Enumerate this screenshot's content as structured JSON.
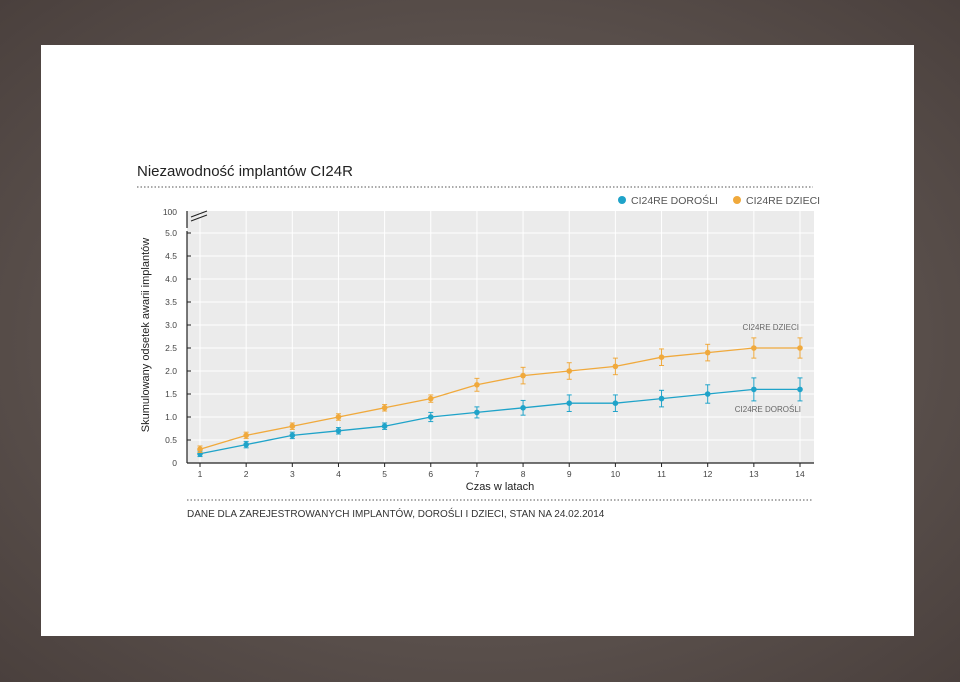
{
  "colors": {
    "adults": "#1fa3c9",
    "children": "#f0a93c",
    "plot_bg": "#ebebeb",
    "grid": "#ffffff"
  },
  "footer_note": "DANE DLA ZAREJESTROWANYCH IMPLANTÓW, DOROŚLI I DZIECI, STAN NA 24.02.2014",
  "chart_data": {
    "type": "line",
    "title": "Niezawodność implantów CI24R",
    "xlabel": "Czas w latach",
    "ylabel": "Skumulowany odsetek awarii implantów",
    "x": [
      1,
      2,
      3,
      4,
      5,
      6,
      7,
      8,
      9,
      10,
      11,
      12,
      13,
      14
    ],
    "xticks": [
      "1",
      "2",
      "3",
      "4",
      "5",
      "6",
      "7",
      "8",
      "9",
      "10",
      "11",
      "12",
      "13",
      "14"
    ],
    "ylim": [
      0,
      5.0
    ],
    "yticks": [
      "0",
      "0.5",
      "1.0",
      "1.5",
      "2.0",
      "2.5",
      "3.0",
      "3.5",
      "4.0",
      "4.5",
      "5.0"
    ],
    "y_break_label": "100",
    "grid": true,
    "legend_position": "top-right",
    "series": [
      {
        "name": "CI24RE DOROŚLI",
        "end_label": "CI24RE DOROŚLI",
        "values": [
          0.2,
          0.4,
          0.6,
          0.7,
          0.8,
          1.0,
          1.1,
          1.2,
          1.3,
          1.3,
          1.4,
          1.5,
          1.6,
          1.6
        ],
        "error": [
          0.06,
          0.07,
          0.07,
          0.07,
          0.07,
          0.1,
          0.12,
          0.16,
          0.18,
          0.18,
          0.18,
          0.2,
          0.25,
          0.25
        ]
      },
      {
        "name": "CI24RE DZIECI",
        "end_label": "CI24RE DZIECI",
        "values": [
          0.3,
          0.6,
          0.8,
          1.0,
          1.2,
          1.4,
          1.7,
          1.9,
          2.0,
          2.1,
          2.3,
          2.4,
          2.5,
          2.5
        ],
        "error": [
          0.07,
          0.07,
          0.07,
          0.07,
          0.07,
          0.08,
          0.14,
          0.18,
          0.18,
          0.18,
          0.18,
          0.18,
          0.22,
          0.22
        ]
      }
    ]
  }
}
